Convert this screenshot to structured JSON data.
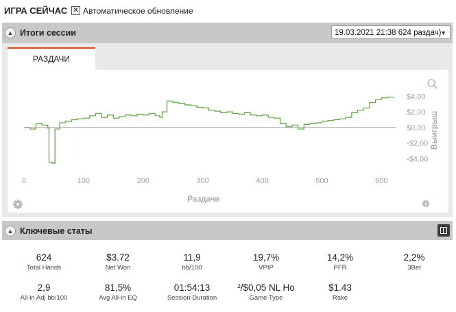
{
  "header": {
    "title": "ИГРА СЕЙЧАС",
    "auto_update_checked": "✕",
    "auto_update_label": "Автоматическое обновление"
  },
  "session_section": {
    "label": "Итоги сессии",
    "session_select_value": "19.03.2021 21:38 624 раздач)",
    "tabs": [
      {
        "label": "РАЗДАЧИ",
        "active": true
      }
    ]
  },
  "chart_data": {
    "type": "line",
    "xlabel": "Раздачи",
    "ylabel": "Выигрыш",
    "xlim": [
      0,
      625
    ],
    "ylim": [
      -5.3,
      5.1
    ],
    "x_ticks": [
      0,
      100,
      200,
      300,
      400,
      500,
      600
    ],
    "x_tick_labels": [
      "0",
      "100",
      "200",
      "300",
      "400",
      "500",
      "600"
    ],
    "y_ticks": [
      4,
      2,
      0,
      -2,
      -4
    ],
    "y_tick_labels": [
      "$4,00",
      "$2,00",
      "$0,00",
      "-$2,00",
      "-$4,00"
    ],
    "line_color": "#6aa84f",
    "zero_line": true,
    "series": [
      {
        "x": [
          0,
          10,
          20,
          30,
          40,
          42,
          48,
          52,
          60,
          70,
          80,
          90,
          100,
          110,
          120,
          130,
          140,
          150,
          160,
          170,
          180,
          190,
          200,
          210,
          220,
          228,
          232,
          240,
          250,
          260,
          270,
          280,
          290,
          300,
          310,
          320,
          330,
          340,
          350,
          360,
          370,
          380,
          390,
          400,
          410,
          420,
          430,
          440,
          450,
          460,
          470,
          480,
          490,
          500,
          510,
          520,
          530,
          540,
          550,
          560,
          570,
          580,
          590,
          600,
          610,
          620
        ],
        "y": [
          0,
          -0.2,
          0.5,
          0.3,
          -0.1,
          -4.5,
          -4.6,
          -0.2,
          0.6,
          0.8,
          1.0,
          1.1,
          1.2,
          1.5,
          1.8,
          1.3,
          1.6,
          1.2,
          1.4,
          1.6,
          1.5,
          1.7,
          1.6,
          1.8,
          1.5,
          1.3,
          2.0,
          3.4,
          3.2,
          3.1,
          2.9,
          2.8,
          2.6,
          2.5,
          2.2,
          2.1,
          1.9,
          2.0,
          1.8,
          1.7,
          1.9,
          1.6,
          1.5,
          1.6,
          1.3,
          1.2,
          0.5,
          0.1,
          0.3,
          -0.2,
          0.4,
          0.5,
          0.6,
          0.8,
          0.9,
          1.0,
          1.1,
          1.3,
          1.9,
          2.2,
          2.5,
          3.2,
          3.6,
          3.8,
          3.9,
          3.8
        ]
      }
    ]
  },
  "key_stats_section": {
    "label": "Ключевые статы",
    "stats": [
      {
        "value": "624",
        "label": "Total Hands"
      },
      {
        "value": "$3.72",
        "label": "Net Won"
      },
      {
        "value": "11,9",
        "label": "bb/100"
      },
      {
        "value": "19,7%",
        "label": "VPIP"
      },
      {
        "value": "14,2%",
        "label": "PFR"
      },
      {
        "value": "2,2%",
        "label": "3Bet"
      },
      {
        "value": "2,9",
        "label": "All-in Adj bb/100"
      },
      {
        "value": "81,5%",
        "label": "Avg All-in EQ"
      },
      {
        "value": "01:54:13",
        "label": "Session Duration"
      },
      {
        "value": "²/$0,05 NL Ho",
        "label": "Game Type"
      },
      {
        "value": "$1.43",
        "label": "Rake"
      }
    ]
  },
  "icons": {
    "collapse": "chevron-up-icon",
    "zoom": "zoom-icon",
    "settings": "gear-icon",
    "info": "info-icon",
    "layout": "layout-icon"
  }
}
